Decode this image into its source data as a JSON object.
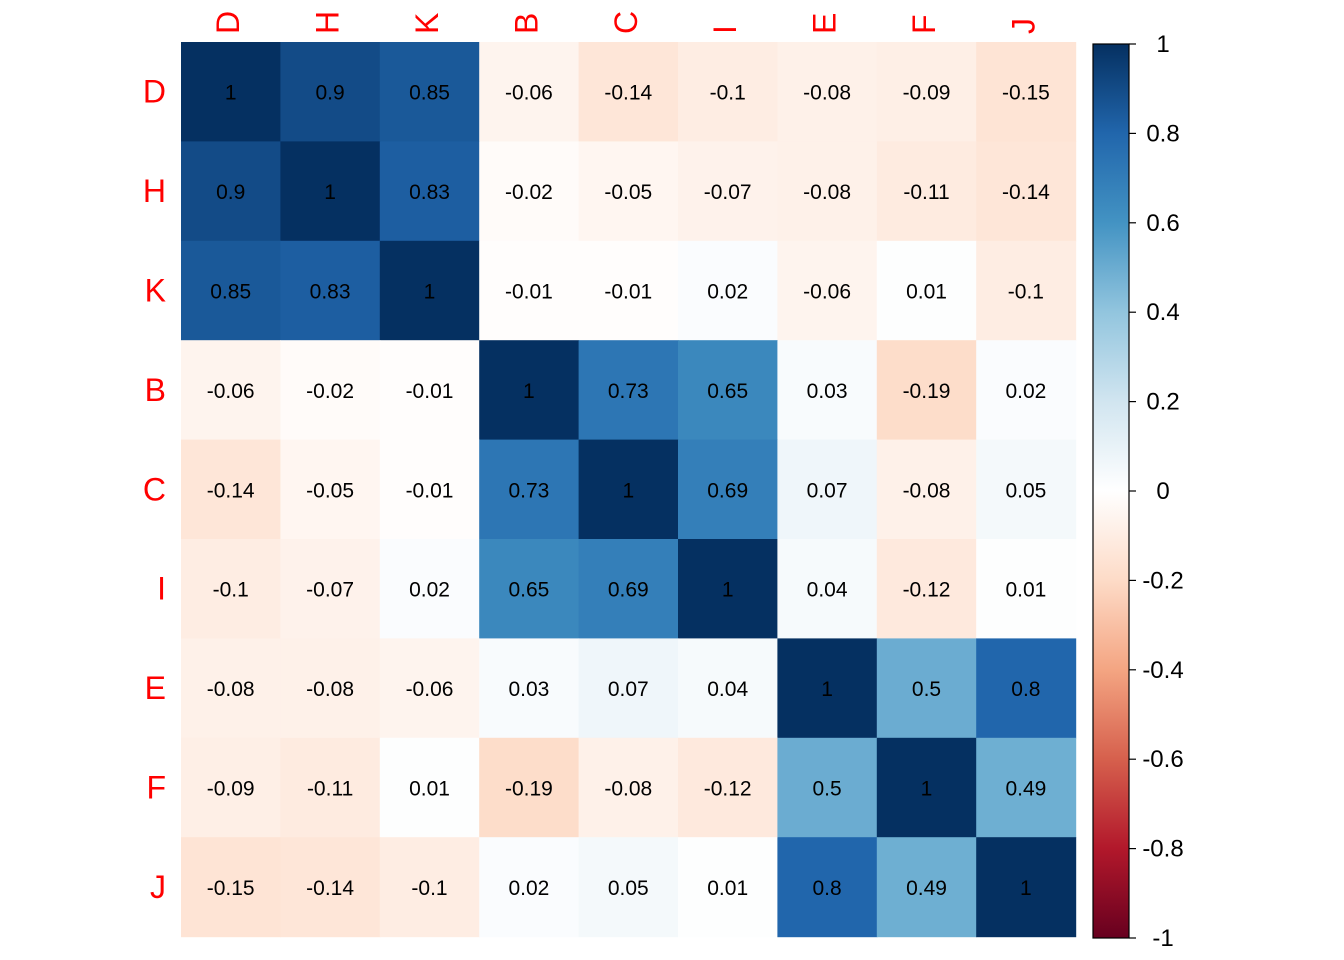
{
  "chart_data": {
    "type": "heatmap",
    "variables": [
      "D",
      "H",
      "K",
      "B",
      "C",
      "I",
      "E",
      "F",
      "J"
    ],
    "matrix": [
      [
        1,
        0.9,
        0.85,
        -0.06,
        -0.14,
        -0.1,
        -0.08,
        -0.09,
        -0.15
      ],
      [
        0.9,
        1,
        0.83,
        -0.02,
        -0.05,
        -0.07,
        -0.08,
        -0.11,
        -0.14
      ],
      [
        0.85,
        0.83,
        1,
        -0.01,
        -0.01,
        0.02,
        -0.06,
        0.01,
        -0.1
      ],
      [
        -0.06,
        -0.02,
        -0.01,
        1,
        0.73,
        0.65,
        0.03,
        -0.19,
        0.02
      ],
      [
        -0.14,
        -0.05,
        -0.01,
        0.73,
        1,
        0.69,
        0.07,
        -0.08,
        0.05
      ],
      [
        -0.1,
        -0.07,
        0.02,
        0.65,
        0.69,
        1,
        0.04,
        -0.12,
        0.01
      ],
      [
        -0.08,
        -0.08,
        -0.06,
        0.03,
        0.07,
        0.04,
        1,
        0.5,
        0.8
      ],
      [
        -0.09,
        -0.11,
        0.01,
        -0.19,
        -0.08,
        -0.12,
        0.5,
        1,
        0.49
      ],
      [
        -0.15,
        -0.14,
        -0.1,
        0.02,
        0.05,
        0.01,
        0.8,
        0.49,
        1
      ]
    ],
    "color_scale": {
      "min": -1,
      "max": 1,
      "stops": [
        "#67001F",
        "#B2182B",
        "#D6604D",
        "#F4A582",
        "#FDDBC7",
        "#FFFFFF",
        "#D1E5F0",
        "#92C5DE",
        "#4393C3",
        "#2166AC",
        "#053061"
      ]
    },
    "colorbar_ticks": [
      "1",
      "0.8",
      "0.6",
      "0.4",
      "0.2",
      "0",
      "-0.2",
      "-0.4",
      "-0.6",
      "-0.8",
      "-1"
    ],
    "label_color": "#FF0000",
    "value_text_color": "#000000",
    "legend_position": "right"
  }
}
